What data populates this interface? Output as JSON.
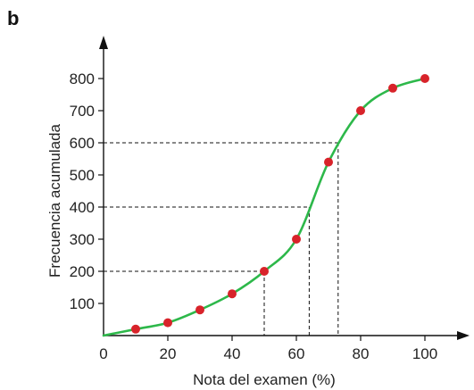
{
  "panel_label": "b",
  "chart_data": {
    "type": "line",
    "title": "",
    "xlabel": "Nota del examen (%)",
    "ylabel": "Frecuencia acumulada",
    "xlim": [
      0,
      100
    ],
    "ylim": [
      0,
      800
    ],
    "x_ticks": [
      0,
      20,
      40,
      60,
      80,
      100
    ],
    "y_ticks": [
      100,
      200,
      300,
      400,
      500,
      600,
      700,
      800
    ],
    "grid": false,
    "legend": "none",
    "series": [
      {
        "points": [
          {
            "x": 10,
            "y": 20
          },
          {
            "x": 20,
            "y": 40
          },
          {
            "x": 30,
            "y": 80
          },
          {
            "x": 40,
            "y": 130
          },
          {
            "x": 50,
            "y": 200
          },
          {
            "x": 60,
            "y": 300
          },
          {
            "x": 70,
            "y": 540
          },
          {
            "x": 80,
            "y": 700
          },
          {
            "x": 90,
            "y": 770
          },
          {
            "x": 100,
            "y": 800
          }
        ],
        "curve_color": "#2db84a",
        "marker_color": "#d8232a"
      }
    ],
    "reference_lines": [
      {
        "y": 200,
        "x": 50
      },
      {
        "y": 400,
        "x": 64
      },
      {
        "y": 600,
        "x": 73
      }
    ]
  }
}
